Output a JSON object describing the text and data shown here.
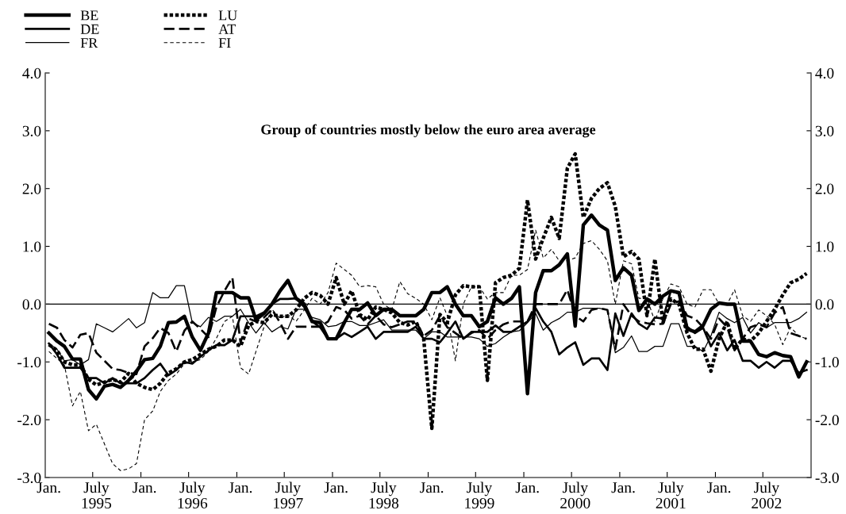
{
  "chart_data": {
    "type": "line",
    "title": "Group of countries mostly below the euro area average",
    "x": [
      "1995-01-15",
      "1995-02-15",
      "1995-03-15",
      "1995-04-15",
      "1995-05-15",
      "1995-06-15",
      "1995-07-15",
      "1995-08-15",
      "1995-09-15",
      "1995-10-15",
      "1995-11-15",
      "1995-12-15",
      "1996-01-15",
      "1996-02-15",
      "1996-03-15",
      "1996-04-15",
      "1996-05-15",
      "1996-06-15",
      "1996-07-15",
      "1996-08-15",
      "1996-09-15",
      "1996-10-15",
      "1996-11-15",
      "1996-12-15",
      "1997-01-15",
      "1997-02-15",
      "1997-03-15",
      "1997-04-15",
      "1997-05-15",
      "1997-06-15",
      "1997-07-15",
      "1997-08-15",
      "1997-09-15",
      "1997-10-15",
      "1997-11-15",
      "1997-12-15",
      "1998-01-15",
      "1998-02-15",
      "1998-03-15",
      "1998-04-15",
      "1998-05-15",
      "1998-06-15",
      "1998-07-15",
      "1998-08-15",
      "1998-09-15",
      "1998-10-15",
      "1998-11-15",
      "1998-12-15",
      "1999-01-15",
      "1999-02-15",
      "1999-03-15",
      "1999-04-15",
      "1999-05-15",
      "1999-06-15",
      "1999-07-15",
      "1999-08-15",
      "1999-09-15",
      "1999-10-15",
      "1999-11-15",
      "1999-12-15",
      "2000-01-15",
      "2000-02-15",
      "2000-03-15",
      "2000-04-15",
      "2000-05-15",
      "2000-06-15",
      "2000-07-15",
      "2000-08-15",
      "2000-09-15",
      "2000-10-15",
      "2000-11-15",
      "2000-12-15",
      "2001-01-15",
      "2001-02-15",
      "2001-03-15",
      "2001-04-15",
      "2001-05-15",
      "2001-06-15",
      "2001-07-15",
      "2001-08-15",
      "2001-09-15",
      "2001-10-15",
      "2001-11-15",
      "2001-12-15",
      "2002-01-15",
      "2002-02-15",
      "2002-03-15",
      "2002-04-15",
      "2002-05-15",
      "2002-06-15",
      "2002-07-15",
      "2002-08-15",
      "2002-09-15",
      "2002-10-15",
      "2002-11-15",
      "2002-12-15"
    ],
    "series": [
      {
        "name": "BE",
        "color": "#000000",
        "line_style": "solid",
        "values": [
          -0.5,
          -0.64,
          -0.73,
          -0.95,
          -0.95,
          -1.48,
          -1.64,
          -1.42,
          -1.39,
          -1.44,
          -1.32,
          -1.16,
          -0.96,
          -0.94,
          -0.73,
          -0.32,
          -0.31,
          -0.21,
          -0.57,
          -0.8,
          -0.5,
          0.2,
          0.2,
          0.2,
          0.11,
          0.11,
          -0.27,
          -0.16,
          0,
          0.23,
          0.41,
          0.1,
          0.0,
          -0.3,
          -0.32,
          -0.6,
          -0.6,
          -0.32,
          -0.09,
          -0.09,
          0.02,
          -0.2,
          -0.09,
          -0.09,
          -0.2,
          -0.2,
          -0.2,
          -0.09,
          0.2,
          0.2,
          0.3,
          0.0,
          -0.2,
          -0.2,
          -0.39,
          -0.3,
          0.11,
          0.0,
          0.1,
          0.3,
          -1.55,
          0.2,
          0.58,
          0.58,
          0.68,
          0.87,
          -0.38,
          1.37,
          1.54,
          1.37,
          1.28,
          0.41,
          0.63,
          0.5,
          -0.11,
          0.09,
          0,
          0.14,
          0.23,
          0.2,
          -0.43,
          -0.48,
          -0.37,
          -0.09,
          0.02,
          0,
          0,
          -0.64,
          -0.64,
          -0.87,
          -0.91,
          -0.84,
          -0.89,
          -0.91,
          -1.26,
          -1.0
        ]
      },
      {
        "name": "DE",
        "color": "#000000",
        "line_style": "solid",
        "values": [
          -0.68,
          -0.87,
          -1.1,
          -1.1,
          -1.1,
          -1.28,
          -1.28,
          -1.37,
          -1.28,
          -1.37,
          -1.37,
          -1.37,
          -1.28,
          -1.14,
          -1.03,
          -1.23,
          -1.14,
          -1.0,
          -1.03,
          -0.91,
          -0.8,
          -0.71,
          -0.71,
          -0.62,
          -0.21,
          -0.21,
          -0.21,
          -0.14,
          0,
          0.09,
          0.09,
          0.1,
          -0.05,
          -0.3,
          -0.4,
          -0.6,
          -0.6,
          -0.5,
          -0.57,
          -0.48,
          -0.39,
          -0.6,
          -0.48,
          -0.48,
          -0.48,
          -0.48,
          -0.39,
          -0.6,
          -0.6,
          -0.66,
          -0.5,
          -0.3,
          -0.6,
          -0.48,
          -0.48,
          -0.48,
          -0.37,
          -0.48,
          -0.48,
          -0.39,
          -0.3,
          -0.07,
          -0.3,
          -0.48,
          -0.87,
          -0.75,
          -0.66,
          -1.05,
          -0.94,
          -0.94,
          -1.14,
          -0.16,
          -0.55,
          -0.16,
          -0.34,
          -0.43,
          -0.23,
          -0.25,
          0.23,
          0.18,
          -0.39,
          -0.5,
          -0.41,
          -0.73,
          -0.5,
          -0.8,
          -0.62,
          -0.98,
          -0.98,
          -1.1,
          -1.0,
          -1.1,
          -0.98,
          -0.98,
          -1.19,
          -1.14
        ]
      },
      {
        "name": "FR",
        "color": "#000000",
        "line_style": "solid",
        "values": [
          -0.68,
          -0.78,
          -0.98,
          -0.96,
          -1.05,
          -0.96,
          -0.34,
          -0.41,
          -0.48,
          -0.37,
          -0.25,
          -0.41,
          -0.32,
          0.2,
          0.11,
          0.11,
          0.32,
          0.32,
          -0.32,
          -0.39,
          -0.23,
          -0.3,
          -0.21,
          -0.21,
          -0.09,
          -0.32,
          -0.5,
          -0.32,
          -0.48,
          -0.39,
          -0.43,
          -0.09,
          -0.09,
          -0.23,
          -0.27,
          -0.39,
          -0.37,
          -0.3,
          -0.3,
          -0.37,
          -0.37,
          -0.32,
          -0.27,
          -0.45,
          -0.45,
          -0.45,
          -0.45,
          -0.6,
          -0.48,
          -0.48,
          -0.57,
          -0.57,
          -0.57,
          -0.57,
          -0.6,
          -0.73,
          -0.68,
          -0.57,
          -0.48,
          -0.46,
          -0.32,
          -0.16,
          -0.45,
          -0.32,
          -0.25,
          -0.14,
          -0.14,
          -0.07,
          -0.07,
          -0.07,
          -0.1,
          -0.84,
          -0.75,
          -0.55,
          -0.82,
          -0.82,
          -0.73,
          -0.73,
          -0.34,
          -0.34,
          -0.73,
          -0.73,
          -0.82,
          -0.55,
          -0.14,
          -0.25,
          -0.32,
          -0.23,
          -0.5,
          -0.32,
          -0.41,
          -0.32,
          -0.32,
          -0.32,
          -0.25,
          -0.14
        ]
      },
      {
        "name": "LU",
        "color": "#000000",
        "line_style": "dotted",
        "values": [
          -0.7,
          -0.8,
          -1.0,
          -1.05,
          -1.05,
          -1.3,
          -1.4,
          -1.35,
          -1.3,
          -1.35,
          -1.2,
          -1.37,
          -1.44,
          -1.48,
          -1.37,
          -1.19,
          -1.12,
          -1.0,
          -0.96,
          -0.87,
          -0.78,
          -0.73,
          -0.62,
          -0.62,
          -0.73,
          -0.37,
          -0.3,
          -0.32,
          -0.18,
          -0.21,
          -0.21,
          -0.1,
          0.1,
          0.2,
          0.15,
          0.0,
          0.46,
          0.0,
          0.23,
          -0.18,
          -0.27,
          -0.05,
          -0.09,
          -0.15,
          -0.32,
          -0.36,
          -0.3,
          -0.6,
          -2.15,
          -0.18,
          -0.32,
          0.16,
          0.32,
          0.3,
          0.3,
          -1.32,
          0.37,
          0.46,
          0.5,
          0.62,
          1.8,
          0.78,
          1.14,
          1.5,
          1.14,
          2.35,
          2.6,
          1.5,
          1.83,
          2.0,
          2.1,
          1.69,
          0.82,
          0.91,
          0.78,
          -0.2,
          0.78,
          -0.32,
          0.09,
          0.0,
          -0.5,
          -0.78,
          -0.78,
          -1.16,
          -0.6,
          -0.3,
          -0.78,
          -0.6,
          -0.64,
          -0.5,
          -0.3,
          -0.09,
          0.16,
          0.37,
          0.43,
          0.53
        ]
      },
      {
        "name": "AT",
        "color": "#000000",
        "line_style": "dashed",
        "values": [
          -0.34,
          -0.41,
          -0.62,
          -0.75,
          -0.53,
          -0.5,
          -0.84,
          -0.98,
          -1.12,
          -1.14,
          -1.19,
          -1.21,
          -0.73,
          -0.59,
          -0.41,
          -0.5,
          -0.82,
          -0.46,
          -0.3,
          -0.43,
          -0.57,
          -0.05,
          0.23,
          0.46,
          -0.66,
          -0.25,
          -0.3,
          -0.23,
          -0.09,
          -0.32,
          -0.6,
          -0.39,
          -0.39,
          -0.39,
          -0.39,
          -0.3,
          -0.05,
          -0.1,
          -0.25,
          -0.2,
          -0.35,
          -0.2,
          -0.35,
          -0.4,
          -0.35,
          -0.3,
          -0.3,
          -0.55,
          -0.45,
          -0.2,
          -0.4,
          -0.5,
          -0.6,
          -0.5,
          -0.45,
          -0.6,
          -0.45,
          -0.35,
          -0.3,
          -0.3,
          -0.3,
          0.0,
          0.0,
          0.0,
          0,
          0.25,
          -0.2,
          -0.3,
          -0.1,
          -0.07,
          -0.1,
          -0.78,
          0.0,
          -0.2,
          -0.3,
          -0.33,
          -0.35,
          -0.34,
          0.0,
          0.05,
          -0.2,
          -0.25,
          -0.4,
          -0.6,
          -0.25,
          -0.4,
          -0.8,
          -0.6,
          -0.4,
          -0.35,
          -0.4,
          -0.15,
          -0.05,
          -0.5,
          -0.55,
          -0.6
        ]
      },
      {
        "name": "FI",
        "color": "#000000",
        "line_style": "dashed",
        "values": [
          -0.82,
          -0.94,
          -1.05,
          -1.76,
          -1.51,
          -2.19,
          -2.08,
          -2.42,
          -2.76,
          -2.88,
          -2.85,
          -2.76,
          -2.0,
          -1.85,
          -1.51,
          -1.32,
          -1.21,
          -1.03,
          -1.0,
          -0.96,
          -0.82,
          -0.59,
          -0.3,
          -0.21,
          -1.1,
          -1.21,
          -0.82,
          -0.39,
          -0.09,
          -0.25,
          -0.18,
          -0.3,
          -0.1,
          0.1,
          0.0,
          0.2,
          0.71,
          0.6,
          0.5,
          0.3,
          0.32,
          0.3,
          0.0,
          -0.1,
          0.39,
          0.18,
          0.1,
          0.0,
          -0.27,
          0.11,
          -0.2,
          -0.98,
          0.0,
          0.3,
          0.3,
          0.09,
          0.2,
          0.2,
          0.5,
          0.5,
          0.6,
          1.28,
          0.8,
          0.95,
          0.75,
          0.75,
          0.8,
          1.05,
          1.1,
          0.95,
          0.75,
          0.0,
          0.75,
          0.7,
          0.1,
          0.1,
          -0.3,
          0.1,
          0.35,
          0.3,
          0.0,
          -0.05,
          0.25,
          0.25,
          0.0,
          0.0,
          0.25,
          -0.2,
          -0.3,
          -0.1,
          -0.2,
          -0.35,
          -0.7,
          -0.4,
          -0.55,
          -0.6
        ]
      }
    ],
    "xlim": [
      "1995-01-01",
      "2003-01-01"
    ],
    "xticks": [
      {
        "value": "1995-01",
        "label": "Jan."
      },
      {
        "value": "1995-07-01",
        "label": null
      },
      {
        "value": "1995-07",
        "label": "July\n1995"
      },
      {
        "value": "1996-01-01",
        "label": null
      },
      {
        "value": "1996-01",
        "label": "Jan."
      },
      {
        "value": "1996-07-01",
        "label": null
      },
      {
        "value": "1996-07",
        "label": "July\n1996"
      },
      {
        "value": "1997-01-01",
        "label": null
      },
      {
        "value": "1997-01",
        "label": "Jan."
      },
      {
        "value": "1997-07-01",
        "label": null
      },
      {
        "value": "1997-07",
        "label": "July\n1997"
      },
      {
        "value": "1998-01-01",
        "label": null
      },
      {
        "value": "1998-01",
        "label": "Jan."
      },
      {
        "value": "1998-07-01",
        "label": null
      },
      {
        "value": "1998-07",
        "label": "July\n1998"
      },
      {
        "value": "1999-01-01",
        "label": null
      },
      {
        "value": "1999-01",
        "label": "Jan."
      },
      {
        "value": "1999-07-01",
        "label": null
      },
      {
        "value": "1999-07",
        "label": "July\n1999"
      },
      {
        "value": "2000-01-01",
        "label": null
      },
      {
        "value": "2000-01",
        "label": "Jan."
      },
      {
        "value": "2000-07-01",
        "label": null
      },
      {
        "value": "2000-07",
        "label": "July\n2000"
      },
      {
        "value": "2001-01-01",
        "label": null
      },
      {
        "value": "2001-01",
        "label": "Jan."
      },
      {
        "value": "2001-07-01",
        "label": null
      },
      {
        "value": "2001-07",
        "label": "July\n2001"
      },
      {
        "value": "2002-01-01",
        "label": null
      },
      {
        "value": "2002-01",
        "label": "Jan."
      },
      {
        "value": "2002-07-01",
        "label": null
      },
      {
        "value": "2002-07",
        "label": "July\n2002"
      }
    ],
    "ylim": [
      -3,
      4
    ],
    "yticks": [
      {
        "value": -3,
        "label": "-3.0"
      },
      {
        "value": -2,
        "label": "-2.0"
      },
      {
        "value": -1,
        "label": "-1.0"
      },
      {
        "value": 0,
        "label": "0.0"
      },
      {
        "value": 1,
        "label": "1.0"
      },
      {
        "value": 2,
        "label": "2.0"
      },
      {
        "value": 3,
        "label": "3.0"
      },
      {
        "value": 4,
        "label": "4.0"
      }
    ],
    "y2lim": [
      -3,
      4
    ],
    "y2ticks": [
      {
        "value": -3,
        "label": "-3.0"
      },
      {
        "value": -2,
        "label": "-2.0"
      },
      {
        "value": -1,
        "label": "-1.0"
      },
      {
        "value": 0,
        "label": "0.0"
      },
      {
        "value": 1,
        "label": "1.0"
      },
      {
        "value": 2,
        "label": "2.0"
      },
      {
        "value": 3,
        "label": "3.0"
      },
      {
        "value": 4,
        "label": "4.0"
      }
    ],
    "ref_lines": [
      {
        "axis": "y",
        "value": 0,
        "color": "#000000",
        "line_style": "solid"
      }
    ],
    "legend": "top left",
    "grid": false,
    "marker": "none"
  }
}
